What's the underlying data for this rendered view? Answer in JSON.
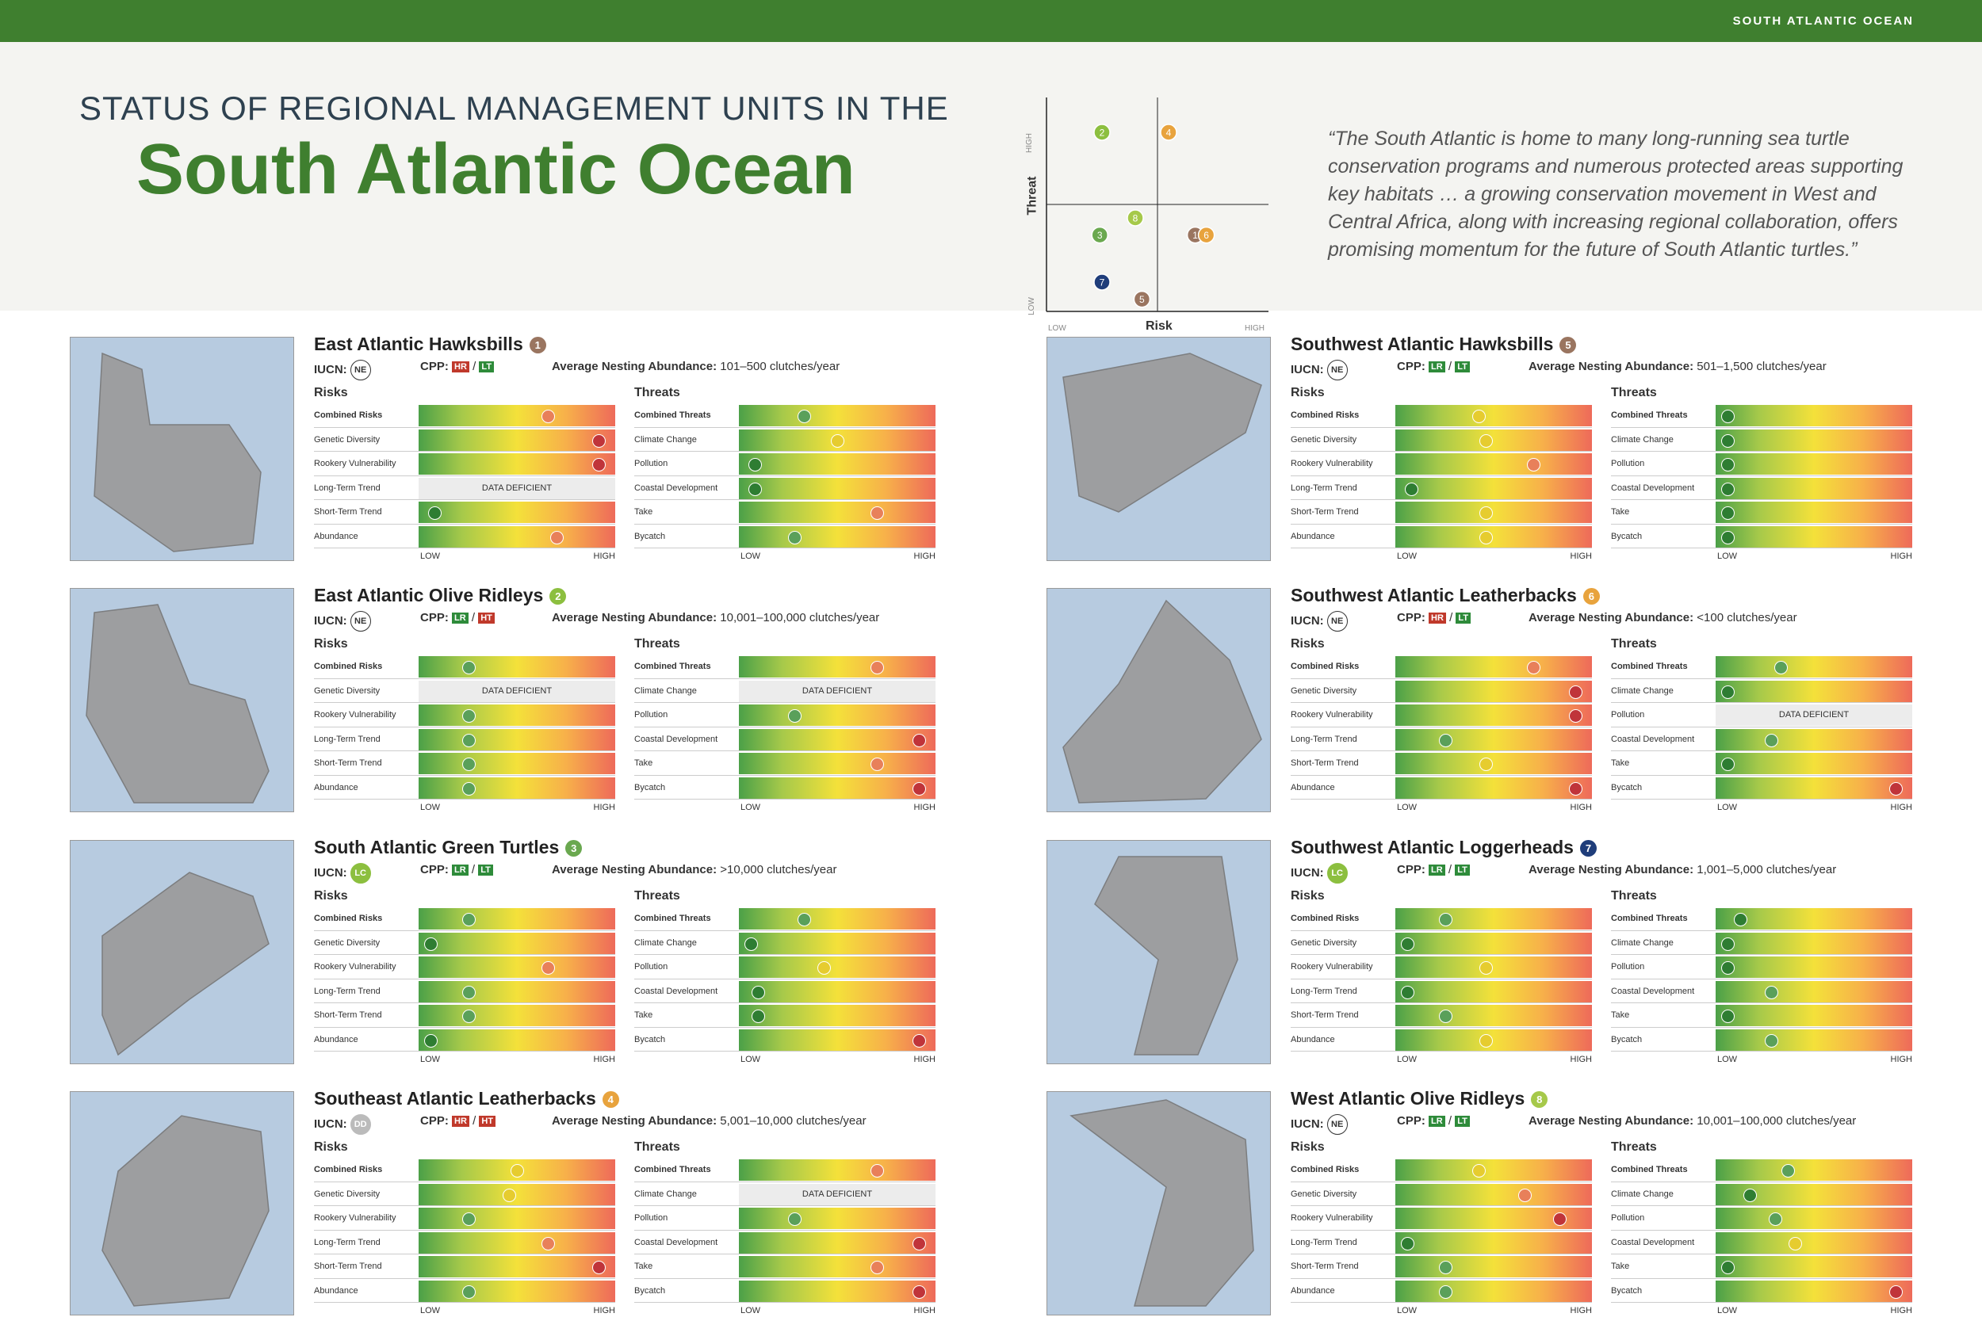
{
  "header": {
    "region": "SOUTH ATLANTIC OCEAN",
    "title_line1": "STATUS OF REGIONAL MANAGEMENT UNITS IN THE",
    "title_line2": "South Atlantic Ocean",
    "quote": "“The South Atlantic is home to many long-running sea turtle conservation programs and numerous protected areas supporting key habitats … a growing conservation movement in West and Central Africa, along with increasing regional collaboration, offers promising momentum for the future of South Atlantic turtles.”"
  },
  "chart_data": {
    "type": "scatter",
    "xlabel": "Risk",
    "ylabel": "Threat",
    "x_low": "LOW",
    "x_high": "HIGH",
    "y_low": "LOW",
    "y_high": "HIGH",
    "points": [
      {
        "label": "2",
        "risk": 0.25,
        "threat": 0.8,
        "color": "#8cbf3f"
      },
      {
        "label": "4",
        "risk": 0.55,
        "threat": 0.8,
        "color": "#e8a33d"
      },
      {
        "label": "8",
        "risk": 0.4,
        "threat": 0.4,
        "color": "#a6c94a"
      },
      {
        "label": "3",
        "risk": 0.24,
        "threat": 0.32,
        "color": "#6aa84f"
      },
      {
        "label": "1",
        "risk": 0.67,
        "threat": 0.32,
        "color": "#9a7560"
      },
      {
        "label": "6",
        "risk": 0.72,
        "threat": 0.32,
        "color": "#e8a33d"
      },
      {
        "label": "7",
        "risk": 0.25,
        "threat": 0.1,
        "color": "#1f3d7a"
      },
      {
        "label": "5",
        "risk": 0.43,
        "threat": 0.02,
        "color": "#9a7560"
      }
    ]
  },
  "labels": {
    "iucn": "IUCN:",
    "cpp": "CPP:",
    "ana": "Average Nesting Abundance:",
    "risks": "Risks",
    "threats": "Threats",
    "low": "LOW",
    "high": "HIGH",
    "slash": "/",
    "dd": "DATA DEFICIENT"
  },
  "risk_rows": [
    "Combined Risks",
    "Genetic Diversity",
    "Rookery Vulnerability",
    "Long-Term Trend",
    "Short-Term Trend",
    "Abundance"
  ],
  "threat_rows": [
    "Combined Threats",
    "Climate Change",
    "Pollution",
    "Coastal Development",
    "Take",
    "Bycatch"
  ],
  "cards": [
    {
      "title": "East Atlantic Hawksbills",
      "num": "1",
      "badge": "#9a7560",
      "iucn": "NE",
      "cpp1": "HR",
      "cpp2": "LT",
      "ana": "101–500 clutches/year",
      "risks": [
        0.67,
        0.95,
        0.95,
        null,
        0.05,
        0.72
      ],
      "threats": [
        0.32,
        0.5,
        0.05,
        0.05,
        0.72,
        0.27
      ]
    },
    {
      "title": "Southwest Atlantic Hawksbills",
      "num": "5",
      "badge": "#9a7560",
      "iucn": "NE",
      "cpp1": "LR",
      "cpp2": "LT",
      "ana": "501–1,500 clutches/year",
      "risks": [
        0.42,
        0.46,
        0.72,
        0.05,
        0.46,
        0.46
      ],
      "threats": [
        0.03,
        0.03,
        0.03,
        0.03,
        0.03,
        0.03
      ]
    },
    {
      "title": "East Atlantic Olive Ridleys",
      "num": "2",
      "badge": "#8cbf3f",
      "iucn": "NE",
      "cpp1": "LR",
      "cpp2": "HT",
      "ana": "10,001–100,000 clutches/year",
      "risks": [
        0.24,
        null,
        0.24,
        0.24,
        0.24,
        0.24
      ],
      "threats": [
        0.72,
        null,
        0.27,
        0.95,
        0.72,
        0.95
      ]
    },
    {
      "title": "Southwest Atlantic Leatherbacks",
      "num": "6",
      "badge": "#e8a33d",
      "iucn": "NE",
      "cpp1": "HR",
      "cpp2": "LT",
      "ana": "<100 clutches/year",
      "risks": [
        0.72,
        0.95,
        0.95,
        0.24,
        0.46,
        0.95
      ],
      "threats": [
        0.32,
        0.03,
        null,
        0.27,
        0.03,
        0.95
      ]
    },
    {
      "title": "South Atlantic Green Turtles",
      "num": "3",
      "badge": "#6aa84f",
      "iucn": "LC",
      "cpp1": "LR",
      "cpp2": "LT",
      "ana": ">10,000 clutches/year",
      "risks": [
        0.24,
        0.03,
        0.67,
        0.24,
        0.24,
        0.03
      ],
      "threats": [
        0.32,
        0.03,
        0.43,
        0.07,
        0.07,
        0.95
      ]
    },
    {
      "title": "Southwest Atlantic Loggerheads",
      "num": "7",
      "badge": "#1f3d7a",
      "iucn": "LC",
      "cpp1": "LR",
      "cpp2": "LT",
      "ana": "1,001–5,000 clutches/year",
      "risks": [
        0.24,
        0.03,
        0.46,
        0.03,
        0.24,
        0.46
      ],
      "threats": [
        0.1,
        0.03,
        0.03,
        0.27,
        0.03,
        0.27
      ]
    },
    {
      "title": "Southeast Atlantic Leatherbacks",
      "num": "4",
      "badge": "#e8a33d",
      "iucn": "DD",
      "cpp1": "HR",
      "cpp2": "HT",
      "ana": "5,001–10,000 clutches/year",
      "risks": [
        0.5,
        0.46,
        0.24,
        0.67,
        0.95,
        0.24
      ],
      "threats": [
        0.72,
        null,
        0.27,
        0.95,
        0.72,
        0.95
      ]
    },
    {
      "title": "West Atlantic Olive Ridleys",
      "num": "8",
      "badge": "#a6c94a",
      "iucn": "NE",
      "cpp1": "LR",
      "cpp2": "LT",
      "ana": "10,001–100,000 clutches/year",
      "risks": [
        0.42,
        0.67,
        0.86,
        0.03,
        0.24,
        0.24
      ],
      "threats": [
        0.36,
        0.15,
        0.29,
        0.4,
        0.03,
        0.95
      ]
    }
  ]
}
